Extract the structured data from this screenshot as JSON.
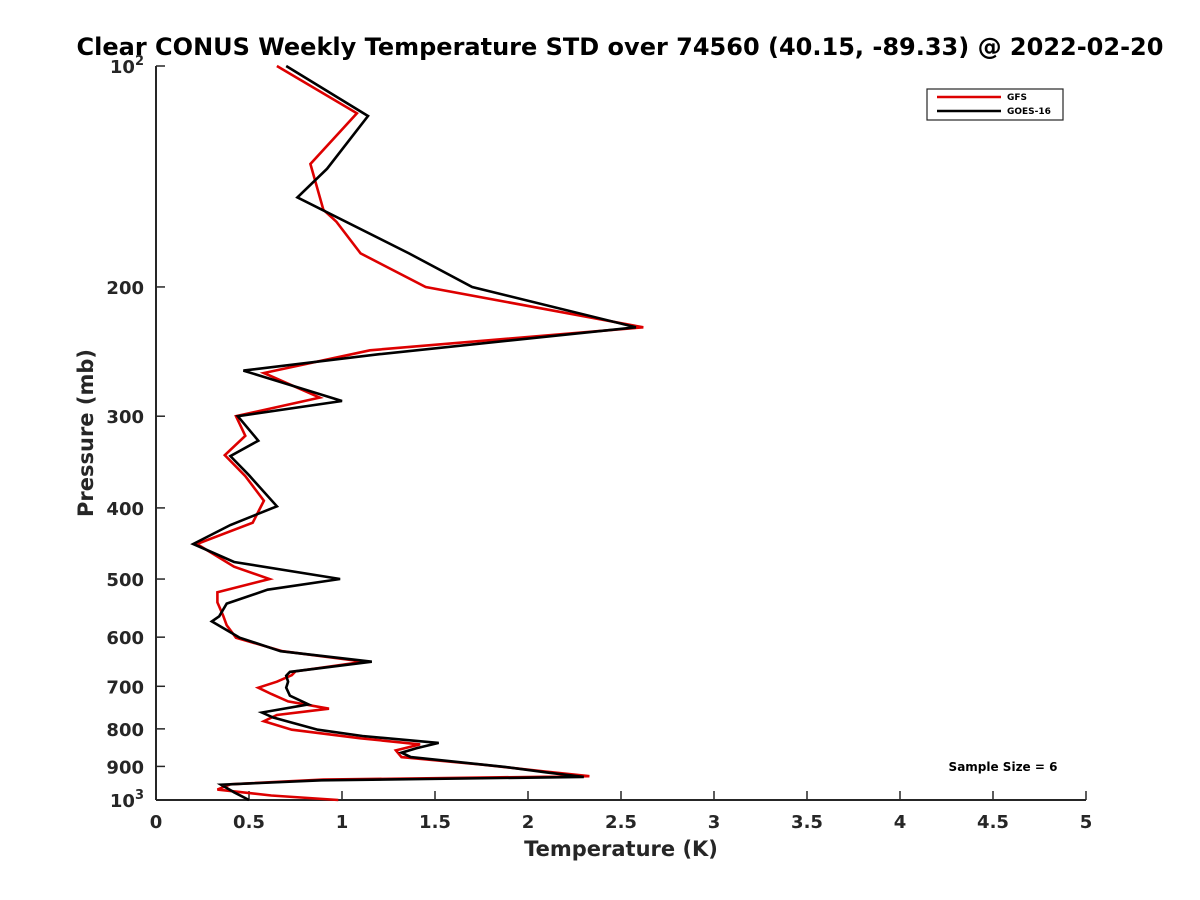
{
  "chart_data": {
    "type": "line",
    "title": "Clear CONUS Weekly Temperature STD over 74560 (40.15, -89.33) @ 2022-02-20",
    "xlabel": "Temperature (K)",
    "ylabel": "Pressure (mb)",
    "xlim": [
      0,
      5
    ],
    "ylim": [
      100,
      1000
    ],
    "y_scale": "log",
    "y_reversed": true,
    "x_ticks": [
      0,
      0.5,
      1,
      1.5,
      2,
      2.5,
      3,
      3.5,
      4,
      4.5,
      5
    ],
    "x_tick_labels": [
      "0",
      "0.5",
      "1",
      "1.5",
      "2",
      "2.5",
      "3",
      "3.5",
      "4",
      "4.5",
      "5"
    ],
    "y_ticks": [
      100,
      200,
      300,
      400,
      500,
      600,
      700,
      800,
      900,
      1000
    ],
    "y_tick_labels": [
      {
        "base": "10",
        "exp": "2"
      },
      {
        "base": "200",
        "exp": ""
      },
      {
        "base": "300",
        "exp": ""
      },
      {
        "base": "400",
        "exp": ""
      },
      {
        "base": "500",
        "exp": ""
      },
      {
        "base": "600",
        "exp": ""
      },
      {
        "base": "700",
        "exp": ""
      },
      {
        "base": "800",
        "exp": ""
      },
      {
        "base": "900",
        "exp": ""
      },
      {
        "base": "10",
        "exp": "3"
      }
    ],
    "grid": false,
    "legend_position": "top-right",
    "annotation": "Sample Size = 6",
    "series": [
      {
        "name": "GFS",
        "color": "#dd0000",
        "points": [
          [
            0.65,
            100
          ],
          [
            1.08,
            116
          ],
          [
            0.83,
            136
          ],
          [
            0.9,
            157
          ],
          [
            0.97,
            163
          ],
          [
            1.1,
            180
          ],
          [
            1.45,
            200
          ],
          [
            2.62,
            227
          ],
          [
            1.15,
            244
          ],
          [
            0.58,
            262
          ],
          [
            0.88,
            283
          ],
          [
            0.43,
            300
          ],
          [
            0.48,
            319
          ],
          [
            0.37,
            339
          ],
          [
            0.48,
            362
          ],
          [
            0.58,
            391
          ],
          [
            0.52,
            419
          ],
          [
            0.22,
            448
          ],
          [
            0.42,
            481
          ],
          [
            0.61,
            500
          ],
          [
            0.33,
            521
          ],
          [
            0.33,
            538
          ],
          [
            0.36,
            560
          ],
          [
            0.38,
            578
          ],
          [
            0.43,
            601
          ],
          [
            0.68,
            627
          ],
          [
            1.12,
            648
          ],
          [
            0.75,
            668
          ],
          [
            0.73,
            676
          ],
          [
            0.65,
            690
          ],
          [
            0.55,
            703
          ],
          [
            0.62,
            717
          ],
          [
            0.71,
            734
          ],
          [
            0.93,
            751
          ],
          [
            0.65,
            766
          ],
          [
            0.58,
            781
          ],
          [
            0.73,
            802
          ],
          [
            1.1,
            824
          ],
          [
            1.42,
            840
          ],
          [
            1.29,
            856
          ],
          [
            1.32,
            874
          ],
          [
            1.75,
            895
          ],
          [
            2.08,
            914
          ],
          [
            2.33,
            928
          ],
          [
            0.9,
            938
          ],
          [
            0.4,
            952
          ],
          [
            0.33,
            968
          ],
          [
            0.62,
            986
          ],
          [
            0.98,
            1000
          ]
        ]
      },
      {
        "name": "GOES-16",
        "color": "#000000",
        "points": [
          [
            0.7,
            100
          ],
          [
            1.14,
            117
          ],
          [
            0.92,
            138
          ],
          [
            0.76,
            151
          ],
          [
            1.36,
            180
          ],
          [
            1.7,
            200
          ],
          [
            2.58,
            227
          ],
          [
            1.2,
            247
          ],
          [
            0.47,
            260
          ],
          [
            1.0,
            286
          ],
          [
            0.44,
            300
          ],
          [
            0.55,
            324
          ],
          [
            0.4,
            340
          ],
          [
            0.5,
            361
          ],
          [
            0.65,
            398
          ],
          [
            0.4,
            422
          ],
          [
            0.2,
            448
          ],
          [
            0.42,
            474
          ],
          [
            0.99,
            500
          ],
          [
            0.6,
            517
          ],
          [
            0.38,
            540
          ],
          [
            0.34,
            562
          ],
          [
            0.3,
            571
          ],
          [
            0.45,
            601
          ],
          [
            0.67,
            627
          ],
          [
            1.16,
            648
          ],
          [
            0.72,
            669
          ],
          [
            0.7,
            677
          ],
          [
            0.71,
            690
          ],
          [
            0.7,
            703
          ],
          [
            0.72,
            721
          ],
          [
            0.82,
            741
          ],
          [
            0.57,
            760
          ],
          [
            0.63,
            772
          ],
          [
            0.87,
            802
          ],
          [
            1.11,
            818
          ],
          [
            1.52,
            836
          ],
          [
            1.4,
            850
          ],
          [
            1.32,
            862
          ],
          [
            1.37,
            874
          ],
          [
            1.87,
            901
          ],
          [
            2.1,
            917
          ],
          [
            2.3,
            930
          ],
          [
            1.31,
            937
          ],
          [
            0.89,
            940
          ],
          [
            0.35,
            953
          ],
          [
            0.42,
            976
          ],
          [
            0.5,
            1000
          ]
        ]
      }
    ]
  }
}
